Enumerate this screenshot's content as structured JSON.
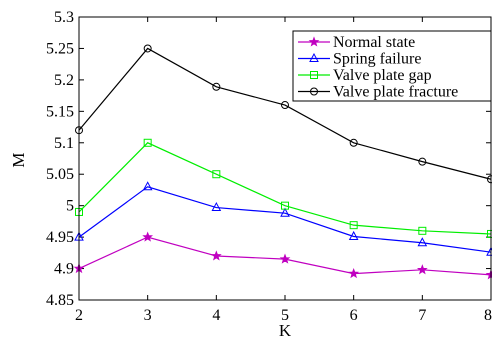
{
  "chart_data": {
    "type": "line",
    "title": "",
    "xlabel": "K",
    "ylabel": "M",
    "xlim": [
      2,
      8
    ],
    "ylim": [
      4.85,
      5.3
    ],
    "x": [
      2,
      3,
      4,
      5,
      6,
      7,
      8
    ],
    "x_ticks": [
      "2",
      "3",
      "4",
      "5",
      "6",
      "7",
      "8"
    ],
    "y_ticks": [
      {
        "value": 4.85,
        "label": "4.85"
      },
      {
        "value": 4.9,
        "label": "4.9"
      },
      {
        "value": 4.95,
        "label": "4.95"
      },
      {
        "value": 5.0,
        "label": "5"
      },
      {
        "value": 5.05,
        "label": "5.05"
      },
      {
        "value": 5.1,
        "label": "5.1"
      },
      {
        "value": 5.15,
        "label": "5.15"
      },
      {
        "value": 5.2,
        "label": "5.2"
      },
      {
        "value": 5.25,
        "label": "5.25"
      },
      {
        "value": 5.3,
        "label": "5.3"
      }
    ],
    "grid": false,
    "legend_position": "top-right",
    "series": [
      {
        "name": "Normal state",
        "color": "#c000c0",
        "marker": "star",
        "values": [
          4.9,
          4.95,
          4.92,
          4.915,
          4.892,
          4.898,
          4.89
        ]
      },
      {
        "name": "Spring failure",
        "color": "#0000ff",
        "marker": "triangle",
        "values": [
          4.95,
          5.03,
          4.997,
          4.988,
          4.951,
          4.941,
          4.926
        ]
      },
      {
        "name": "Valve plate gap",
        "color": "#00ee00",
        "marker": "square",
        "values": [
          4.99,
          5.1,
          5.05,
          5.0,
          4.969,
          4.96,
          4.955
        ]
      },
      {
        "name": "Valve plate fracture",
        "color": "#000000",
        "marker": "circle",
        "values": [
          5.12,
          5.25,
          5.189,
          5.16,
          5.1,
          5.07,
          5.042
        ]
      }
    ]
  }
}
